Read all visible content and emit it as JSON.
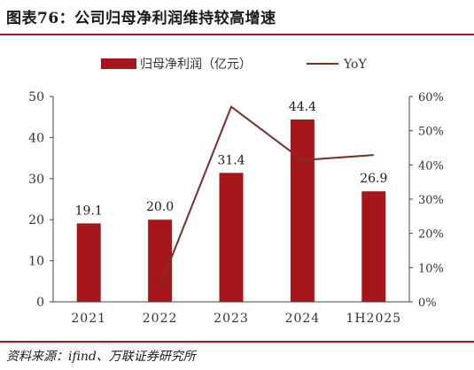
{
  "header": {
    "title": "图表76：公司归母净利润维持较高增速"
  },
  "footer": {
    "source": "资料来源：ifind、万联证券研究所"
  },
  "chart_data": {
    "type": "bar",
    "categories": [
      "2021",
      "2022",
      "2023",
      "2024",
      "1H2025"
    ],
    "series": [
      {
        "name": "归母净利润（亿元）",
        "type": "bar",
        "axis": "left",
        "values": [
          19.1,
          20.0,
          31.4,
          44.4,
          26.9
        ],
        "labels": [
          "19.1",
          "20.0",
          "31.4",
          "44.4",
          "26.9"
        ]
      },
      {
        "name": "YoY",
        "type": "line",
        "axis": "right",
        "values": [
          null,
          0.045,
          0.57,
          0.414,
          0.429
        ]
      }
    ],
    "y_left": {
      "range": [
        0,
        50
      ],
      "ticks": [
        "0",
        "10",
        "20",
        "30",
        "40",
        "50"
      ]
    },
    "y_right": {
      "range": [
        0,
        0.6
      ],
      "ticks": [
        "0%",
        "10%",
        "20%",
        "30%",
        "40%",
        "50%",
        "60%"
      ]
    },
    "legend_position": "top",
    "grid": false,
    "colors": {
      "bar": "#a6171c",
      "line": "#7a2e2a",
      "axis": "#444444"
    }
  }
}
